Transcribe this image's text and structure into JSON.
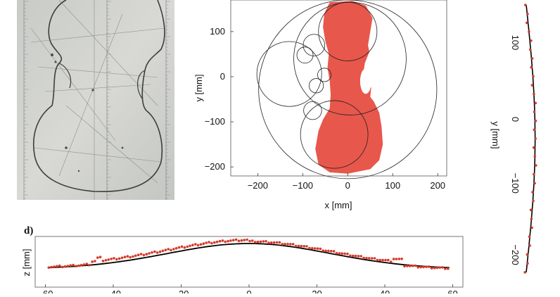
{
  "panel_d_label": "d)",
  "chart_data": [
    {
      "id": "b",
      "type": "scatter",
      "xlabel": "x [mm]",
      "ylabel": "y [mm]",
      "xlim": [
        -260,
        220
      ],
      "ylim": [
        -220,
        170
      ],
      "xticks": [
        -200,
        -100,
        0,
        100,
        200
      ],
      "yticks": [
        100,
        0,
        -100,
        -200
      ],
      "xtick_labels": [
        "−200",
        "−100",
        "0",
        "100",
        "200"
      ],
      "ytick_labels": [
        "100",
        "0",
        "−100",
        "−200"
      ],
      "fill_color": "#e8574c",
      "circles": [
        {
          "cx": 5,
          "cy": 40,
          "r": 125
        },
        {
          "cx": 0,
          "cy": -28,
          "r": 198
        },
        {
          "cx": -130,
          "cy": 6,
          "r": 72
        },
        {
          "cx": 0,
          "cy": 100,
          "r": 65
        },
        {
          "cx": -30,
          "cy": -128,
          "r": 75
        },
        {
          "cx": -75,
          "cy": 70,
          "r": 24
        },
        {
          "cx": -95,
          "cy": 48,
          "r": 18
        },
        {
          "cx": -52,
          "cy": 4,
          "r": 15
        },
        {
          "cx": -70,
          "cy": -20,
          "r": 16
        },
        {
          "cx": -78,
          "cy": -75,
          "r": 20
        }
      ]
    },
    {
      "id": "c",
      "type": "line",
      "ylabel": "y [mm]",
      "yticks": [
        100,
        0,
        -100,
        -200
      ],
      "ytick_labels": [
        "100",
        "0",
        "−100",
        "−200"
      ],
      "ylim": [
        -215,
        170
      ],
      "point_color": "#d43a2a",
      "line_color": "#000000"
    },
    {
      "id": "d",
      "type": "line",
      "ylabel": "z [mm]",
      "xlim": [
        -63,
        63
      ],
      "xticks": [
        -60,
        -40,
        -20,
        0,
        20,
        40,
        60
      ],
      "xtick_labels": [
        "−60",
        "−40",
        "−20",
        "0",
        "20",
        "40",
        "60"
      ],
      "point_color": "#d43a2a",
      "line_color": "#000000"
    }
  ]
}
